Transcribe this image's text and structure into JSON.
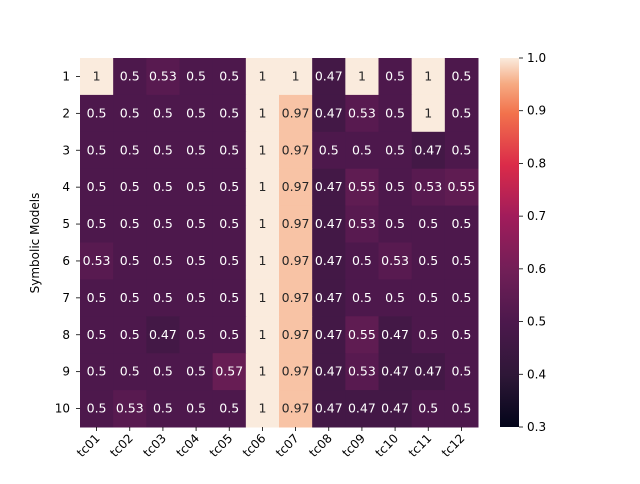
{
  "chart_data": {
    "type": "heatmap",
    "title": "",
    "xlabel": "",
    "ylabel": "Symbolic Models",
    "x_categories": [
      "tc01",
      "tc02",
      "tc03",
      "tc04",
      "tc05",
      "tc06",
      "tc07",
      "tc08",
      "tc09",
      "tc10",
      "tc11",
      "tc12"
    ],
    "y_categories": [
      "1",
      "2",
      "3",
      "4",
      "5",
      "6",
      "7",
      "8",
      "9",
      "10"
    ],
    "values": [
      [
        1,
        0.5,
        0.53,
        0.5,
        0.5,
        1,
        1,
        0.47,
        1,
        0.5,
        1,
        0.5
      ],
      [
        0.5,
        0.5,
        0.5,
        0.5,
        0.5,
        1,
        0.97,
        0.47,
        0.53,
        0.5,
        1,
        0.5
      ],
      [
        0.5,
        0.5,
        0.5,
        0.5,
        0.5,
        1,
        0.97,
        0.5,
        0.5,
        0.5,
        0.47,
        0.5
      ],
      [
        0.5,
        0.5,
        0.5,
        0.5,
        0.5,
        1,
        0.97,
        0.47,
        0.55,
        0.5,
        0.53,
        0.55
      ],
      [
        0.5,
        0.5,
        0.5,
        0.5,
        0.5,
        1,
        0.97,
        0.47,
        0.53,
        0.5,
        0.5,
        0.5
      ],
      [
        0.53,
        0.5,
        0.5,
        0.5,
        0.5,
        1,
        0.97,
        0.47,
        0.5,
        0.53,
        0.5,
        0.5
      ],
      [
        0.5,
        0.5,
        0.5,
        0.5,
        0.5,
        1,
        0.97,
        0.47,
        0.5,
        0.5,
        0.5,
        0.5
      ],
      [
        0.5,
        0.5,
        0.47,
        0.5,
        0.5,
        1,
        0.97,
        0.47,
        0.55,
        0.47,
        0.5,
        0.5
      ],
      [
        0.5,
        0.5,
        0.5,
        0.5,
        0.57,
        1,
        0.97,
        0.47,
        0.53,
        0.47,
        0.47,
        0.5
      ],
      [
        0.5,
        0.53,
        0.5,
        0.5,
        0.5,
        1,
        0.97,
        0.47,
        0.47,
        0.47,
        0.5,
        0.5
      ]
    ],
    "colorbar": {
      "vmin": 0.3,
      "vmax": 1.0,
      "ticks": [
        "0.3",
        "0.4",
        "0.5",
        "0.6",
        "0.7",
        "0.8",
        "0.9",
        "1.0"
      ]
    },
    "colormap": "rocket",
    "x_tick_rotation": "45 degrees",
    "annotations": true,
    "grid": false
  }
}
